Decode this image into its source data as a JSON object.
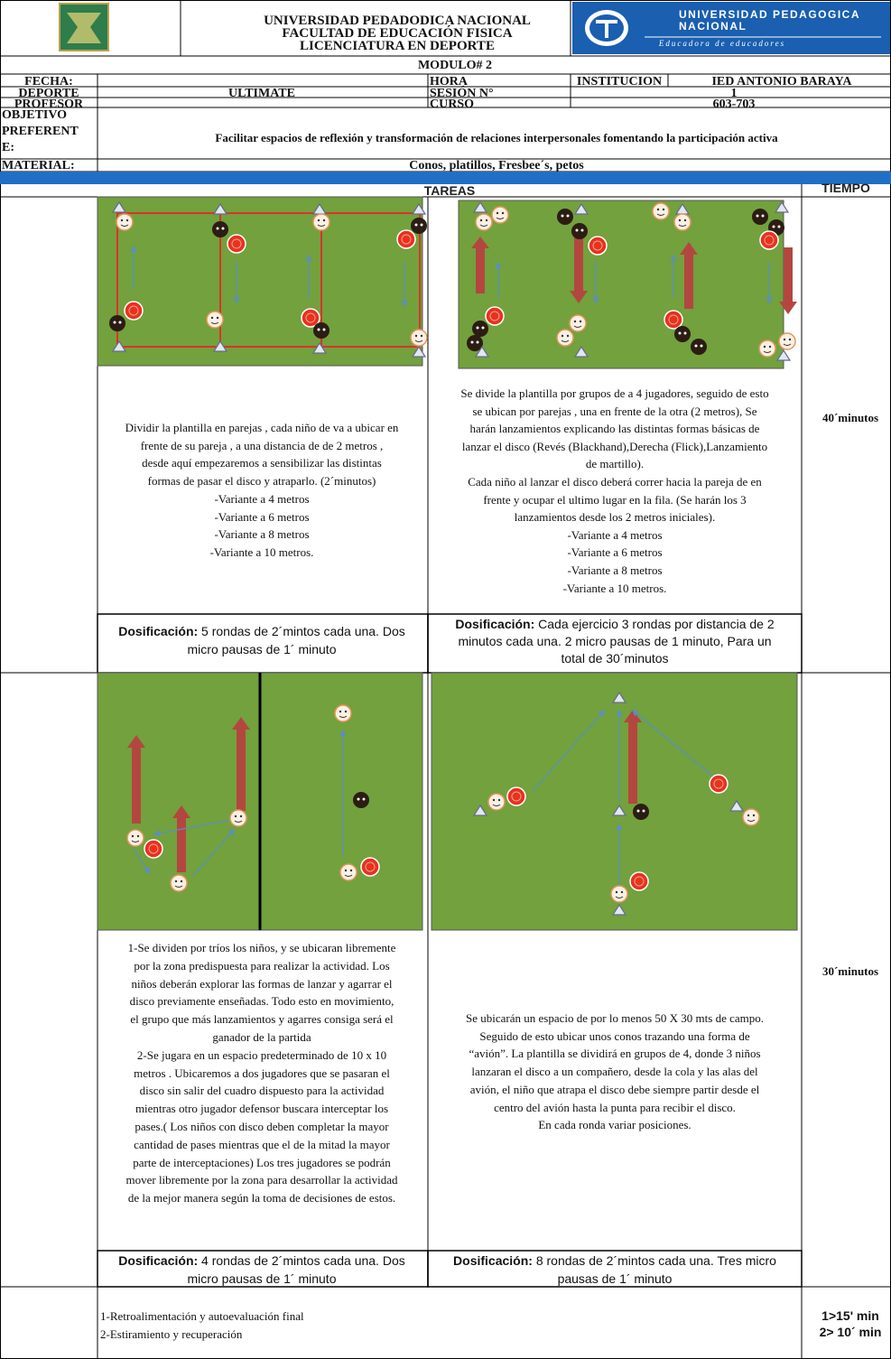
{
  "header": {
    "university": "UNIVERSIDAD PEDADODICA NACIONAL",
    "faculty": "FACULTAD DE EDUCACIÓN FISICA",
    "program": "LICENCIATURA EN DEPORTE",
    "logo_name": [
      "UNIVERSIDAD PEDAGOGICA",
      "NACIONAL"
    ],
    "logo_motto": "Educadora de educadores"
  },
  "module": "MODULO# 2",
  "info": {
    "fecha_label": "FECHA:",
    "deporte_label": "DEPORTE",
    "deporte": "ULTIMATE",
    "profesor_label": "PROFESOR",
    "hora_label": "HORA",
    "sesion_label": "SESIÓN N°",
    "sesion": "1",
    "curso_label": "CURSO",
    "curso": "603-703",
    "institucion_label": "INSTITUCION",
    "institucion": "IED ANTONIO BARAYA"
  },
  "objective": {
    "label_lines": [
      "OBJETIVO",
      "PREFERENT",
      "E:"
    ],
    "text": "Facilitar espacios de reflexión y transformación de relaciones interpersonales fomentando la participación activa"
  },
  "material": {
    "label": "MATERIAL:",
    "text": "Conos, platillos, Fresbee´s, petos"
  },
  "tasks_header": "TAREAS",
  "time_header": "TIEMPO",
  "sections": [
    {
      "time": "40´minutos",
      "activities": [
        {
          "lines": [
            "Dividir la plantilla en parejas , cada niño de va a ubicar en",
            "frente de su pareja , a una distancia de de 2 metros ,",
            "desde aquí empezaremos a sensibilizar las distintas",
            "formas de pasar el disco y atraparlo. (2´minutos)",
            "-Variante a 4 metros",
            "-Variante a 6 metros",
            "-Variante a 8 metros",
            "-Variante a 10 metros."
          ],
          "dosage_label": "Dosificación:",
          "dosage_lines": [
            "5  rondas de 2´mintos cada una. Dos",
            "micro pausas de 1´ minuto"
          ]
        },
        {
          "lines": [
            "Se divide la plantilla por grupos de a 4 jugadores, seguido de esto",
            "se ubican por parejas , una en frente de la otra (2 metros), Se",
            "harán lanzamientos explicando las distintas formas básicas  de",
            "lanzar el disco (Revés (Blackhand),Derecha (Flick),Lanzamiento",
            "de martillo).",
            "Cada niño al lanzar el disco deberá correr hacia la pareja de en",
            "frente y ocupar el ultimo lugar en la fila. (Se harán los 3",
            "lanzamientos desde los 2 metros iniciales).",
            "-Variante a 4 metros",
            "-Variante a 6 metros",
            "-Variante a 8 metros",
            "-Variante a 10 metros."
          ],
          "dosage_label": "Dosificación:",
          "dosage_lines": [
            "Cada ejercicio 3 rondas por distancia de 2",
            "minutos cada una. 2 micro pausas de 1 minuto, Para un",
            "total de 30´minutos"
          ]
        }
      ]
    },
    {
      "time": "30´minutos",
      "activities": [
        {
          "lines": [
            "1-Se dividen por tríos los niños, y se ubicaran libremente",
            "por la zona predispuesta para realizar la actividad. Los",
            "niños deberán explorar las formas de lanzar y agarrar el",
            "disco previamente enseñadas. Todo esto en movimiento,",
            "el grupo que más lanzamientos y agarres consiga será el",
            "ganador de la partida",
            "2-Se jugara en un espacio predeterminado de 10 x 10",
            "metros . Ubicaremos a dos jugadores que se pasaran el",
            "disco sin salir del cuadro dispuesto para la actividad",
            "mientras otro jugador defensor buscara interceptar los",
            "pases.( Los niños con disco deben completar la mayor",
            "cantidad de pases mientras que el de la mitad la mayor",
            "parte de interceptaciones) Los tres jugadores se podrán",
            "mover libremente por la zona para desarrollar la actividad",
            "de la mejor manera según la toma de decisiones de estos."
          ],
          "dosage_label": "Dosificación:",
          "dosage_lines": [
            "4  rondas de 2´mintos cada una. Dos",
            "micro pausas de 1´ minuto"
          ]
        },
        {
          "lines": [
            "Se ubicarán un espacio de por lo menos 50 X 30 mts de campo.",
            "Seguido de esto ubicar unos conos trazando una forma de",
            "“avión”. La plantilla se dividirá en grupos de 4, donde 3 niños",
            "lanzaran el disco a un compañero, desde la cola y las alas del",
            "avión, el niño que atrapa el disco debe siempre partir desde el",
            "centro del avión hasta la punta para recibir el disco.",
            "En cada ronda variar posiciones."
          ],
          "dosage_label": "Dosificación:",
          "dosage_lines": [
            "8  rondas de 2´mintos cada una. Tres micro",
            "pausas de 1´ minuto"
          ]
        }
      ]
    }
  ],
  "closing": {
    "lines": [
      "1-Retroalimentación y autoevaluación final",
      "2-Estiramiento y recuperación"
    ],
    "time_lines": [
      "1>15' min",
      "2> 10´ min"
    ]
  }
}
